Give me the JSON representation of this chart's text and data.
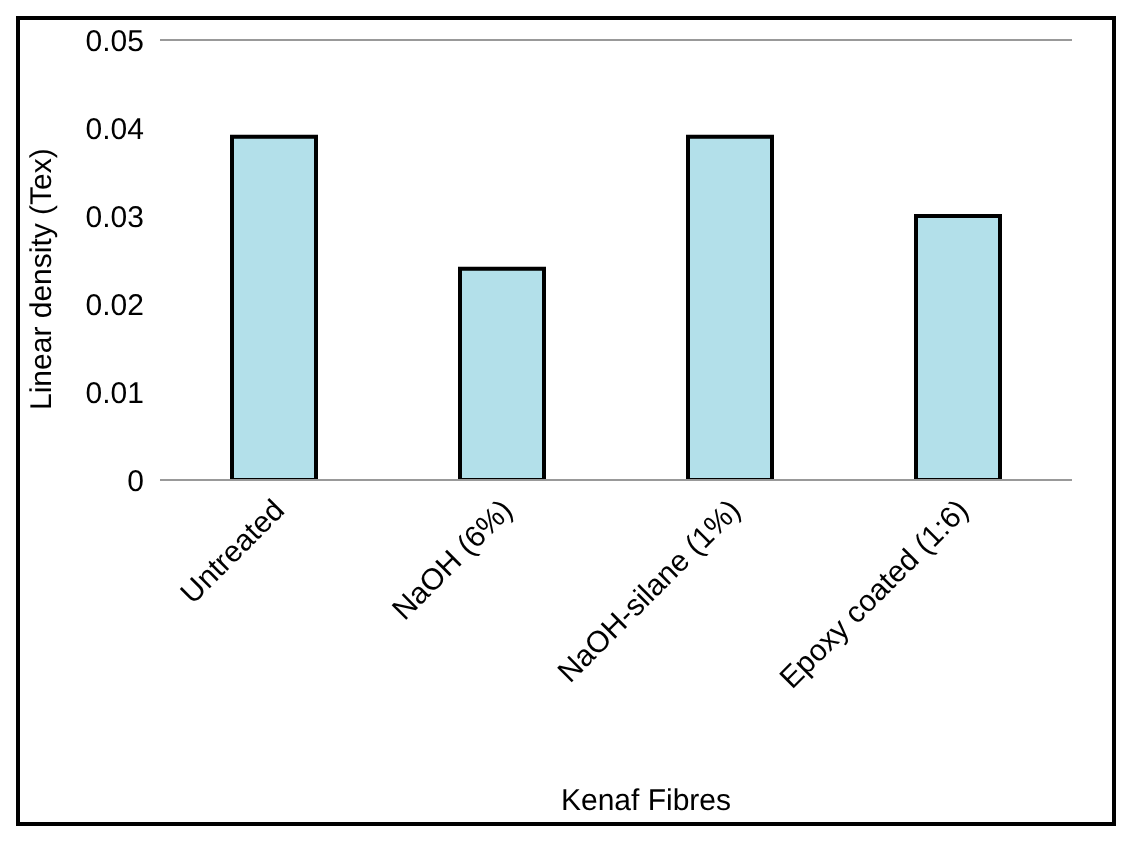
{
  "chart_data": {
    "type": "bar",
    "xlabel": "Kenaf Fibres",
    "ylabel": "Linear density (Tex)",
    "categories": [
      "Untreated",
      "NaOH (6%)",
      "NaOH-silane (1%)",
      "Epoxy coated (1:6)"
    ],
    "values": [
      0.039,
      0.024,
      0.039,
      0.03
    ],
    "color": "#b3e0ea",
    "ylim": [
      0,
      0.05
    ],
    "yticks": [
      0,
      0.01,
      0.02,
      0.03,
      0.04,
      0.05
    ],
    "grid": false
  }
}
